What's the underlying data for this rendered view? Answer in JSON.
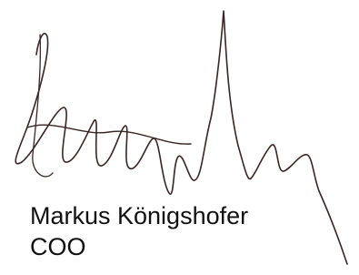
{
  "signature": {
    "name": "Markus Königshofer",
    "title": "COO"
  }
}
